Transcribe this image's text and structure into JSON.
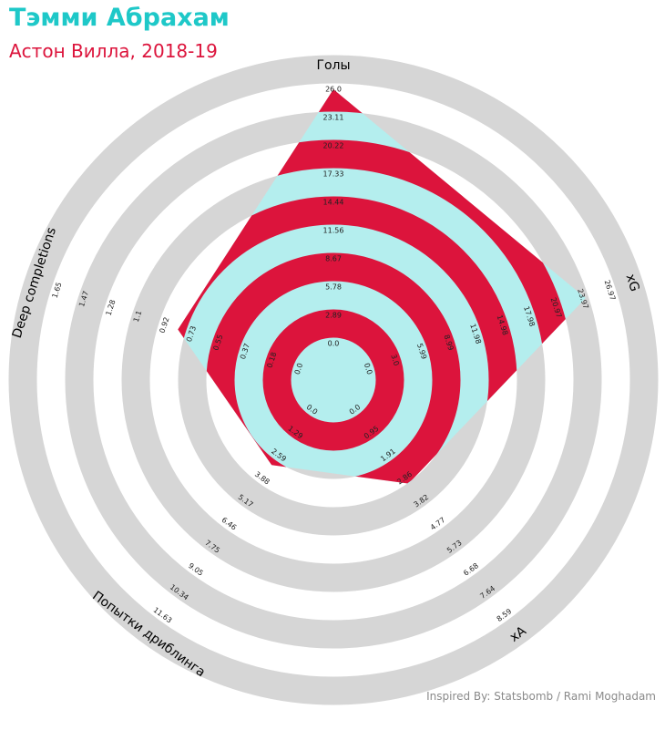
{
  "title": "Тэмми Абрахам",
  "subtitle": "Астон Вилла, 2018-19",
  "credit": "Inspired By: Statsbomb / Rami Moghadam",
  "colors": {
    "title": "#1ec8c8",
    "subtitle": "#dc143c",
    "ring_gray": "#d6d6d6",
    "ring_red": "#dc143c",
    "ring_cyan": "#b4eeee"
  },
  "chart_data": {
    "type": "radar",
    "axes": [
      {
        "label": "Голы",
        "ticks": [
          "0.0",
          "2.89",
          "5.78",
          "8.67",
          "11.56",
          "14.44",
          "17.33",
          "20.22",
          "23.11",
          "26.0"
        ],
        "value_fraction": 1.0
      },
      {
        "label": "xG",
        "ticks": [
          "0.0",
          "3.0",
          "5.99",
          "8.99",
          "11.98",
          "14.98",
          "17.98",
          "20.97",
          "23.97",
          "26.97"
        ],
        "value_fraction": 0.9
      },
      {
        "label": "xA",
        "ticks": [
          "0.0",
          "0.95",
          "1.91",
          "2.86",
          "3.82",
          "4.77",
          "5.73",
          "6.68",
          "7.64",
          "8.59"
        ],
        "value_fraction": 0.36
      },
      {
        "label": "Попытки дриблинга",
        "ticks": [
          "0.0",
          "1.29",
          "2.59",
          "3.88",
          "5.17",
          "6.46",
          "7.75",
          "9.05",
          "10.34",
          "11.63"
        ],
        "value_fraction": 0.27
      },
      {
        "label": "Deep completions",
        "ticks": [
          "0.0",
          "0.18",
          "0.37",
          "0.55",
          "0.73",
          "0.92",
          "1.1",
          "1.28",
          "1.47",
          "1.65"
        ],
        "value_fraction": 0.5
      }
    ]
  }
}
